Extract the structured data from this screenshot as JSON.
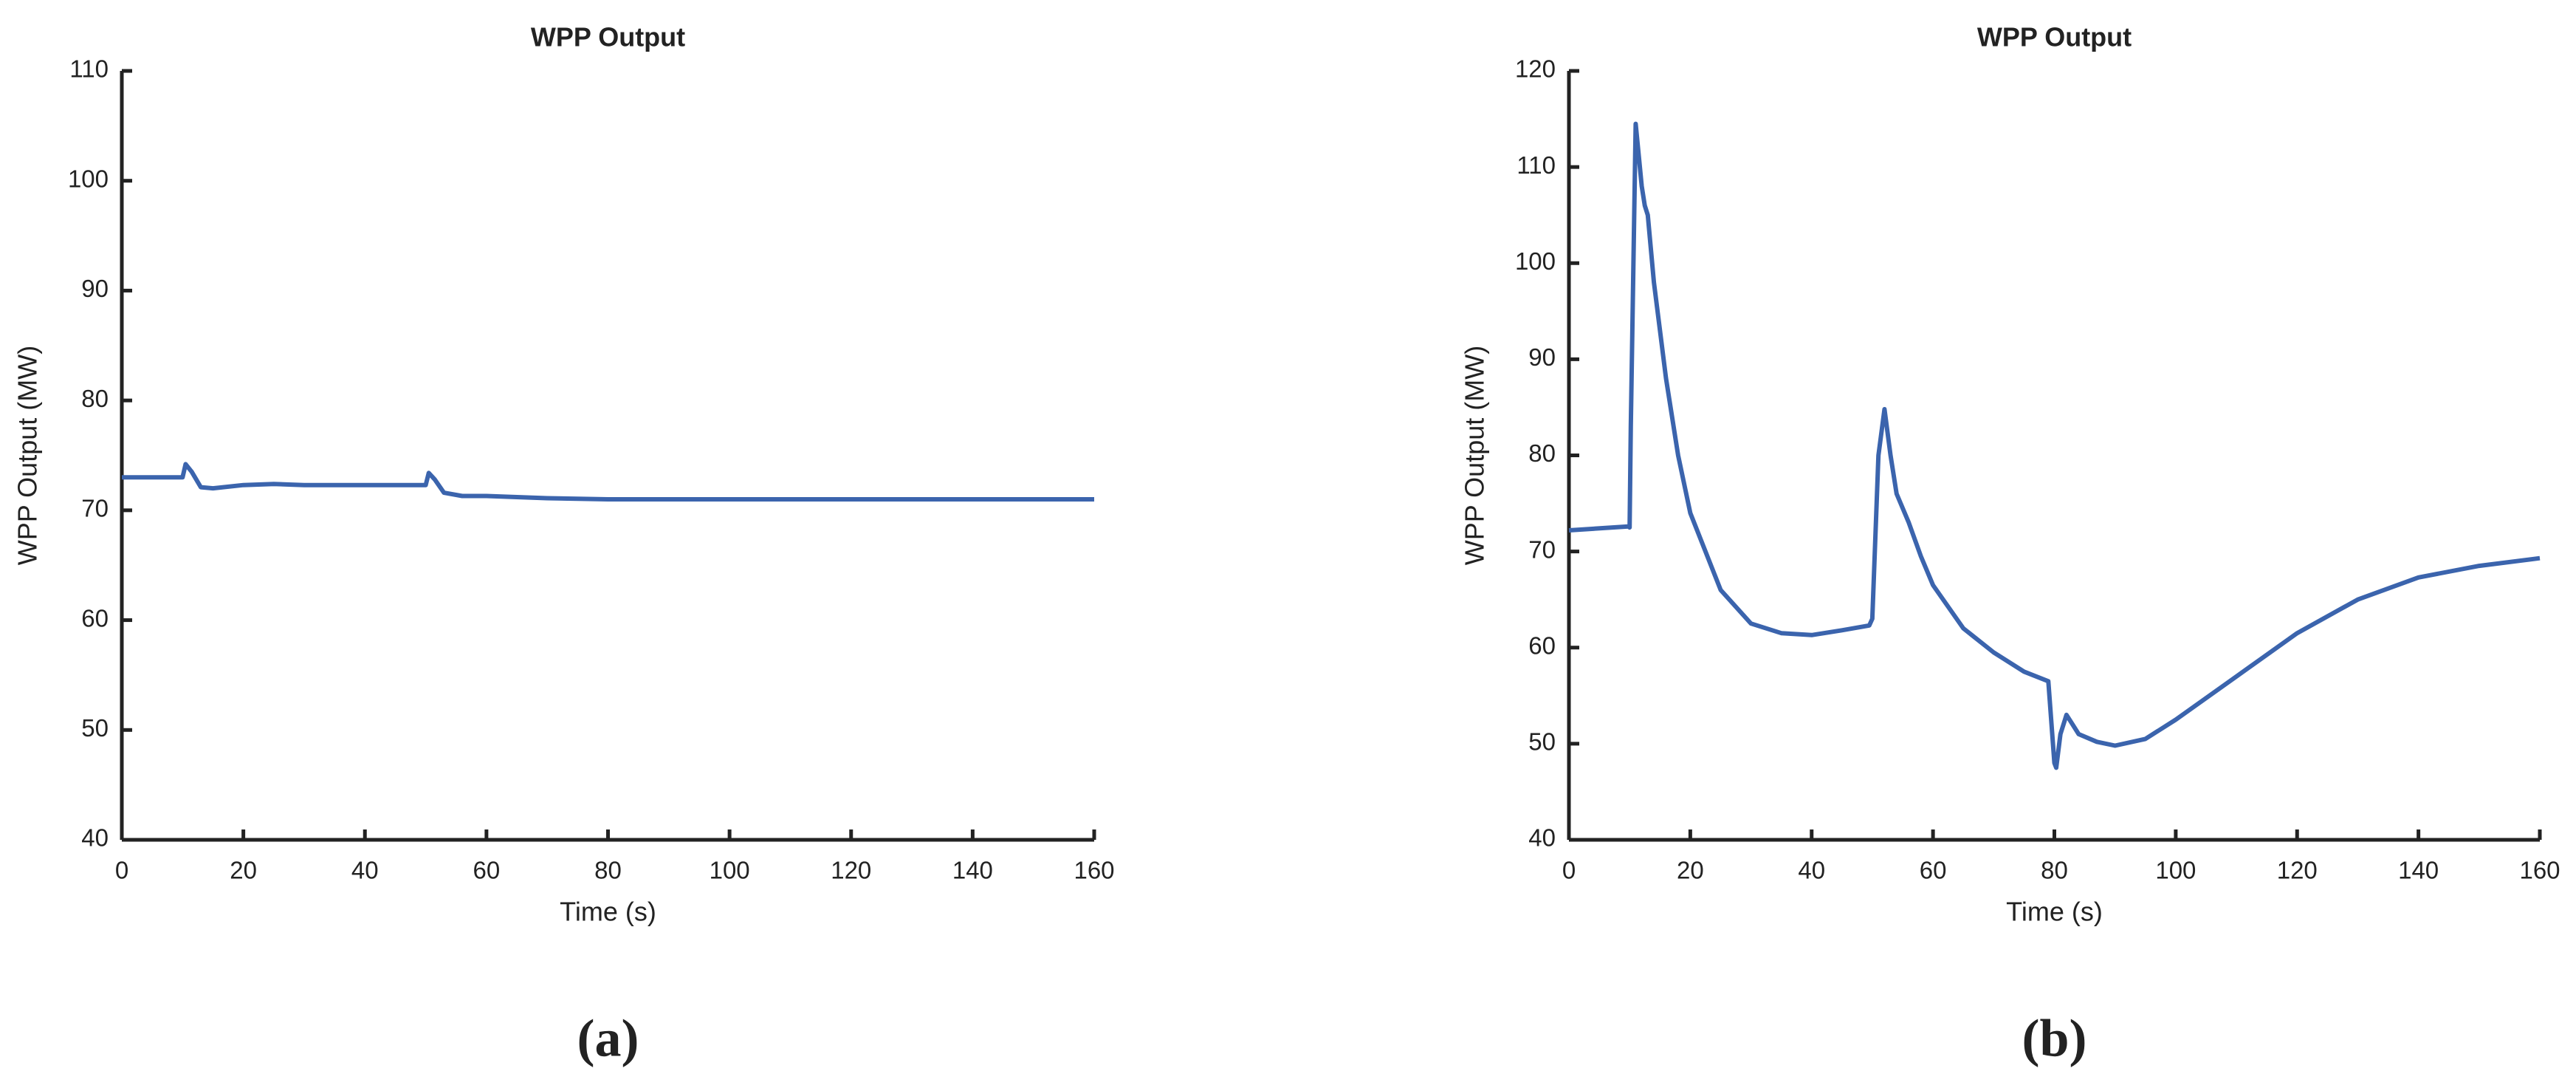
{
  "chart_data": [
    {
      "type": "line",
      "title": "WPP Output",
      "xlabel": "Time (s)",
      "ylabel": "WPP Output (MW)",
      "caption": "(a)",
      "xlim": [
        0,
        160
      ],
      "xticks": [
        0,
        20,
        40,
        60,
        80,
        100,
        120,
        140,
        160
      ],
      "ylim": [
        40,
        110
      ],
      "yticks": [
        40,
        50,
        60,
        70,
        80,
        90,
        100,
        110
      ],
      "series": [
        {
          "color": "#3b64ad",
          "x": [
            0,
            10,
            10.5,
            11.5,
            13,
            15,
            20,
            25,
            30,
            50,
            50.5,
            51.5,
            53,
            56,
            60,
            65,
            70,
            80,
            100,
            160
          ],
          "values": [
            73,
            73,
            74.2,
            73.5,
            72.1,
            72,
            72.3,
            72.4,
            72.3,
            72.3,
            73.4,
            72.8,
            71.6,
            71.3,
            71.3,
            71.2,
            71.1,
            71,
            71,
            71
          ]
        }
      ]
    },
    {
      "type": "line",
      "title": "WPP Output",
      "xlabel": "Time (s)",
      "ylabel": "WPP Output (MW)",
      "caption": "(b)",
      "xlim": [
        0,
        160
      ],
      "xticks": [
        0,
        20,
        40,
        60,
        80,
        100,
        120,
        140,
        160
      ],
      "ylim": [
        40,
        120
      ],
      "yticks": [
        40,
        50,
        60,
        70,
        80,
        90,
        100,
        110,
        120
      ],
      "series": [
        {
          "color": "#3b64ad",
          "x": [
            0,
            9.8,
            10,
            10.2,
            11,
            12,
            12.5,
            13,
            14,
            16,
            18,
            20,
            25,
            30,
            35,
            40,
            45,
            49.5,
            50,
            51,
            52,
            53,
            54,
            56,
            58,
            60,
            65,
            70,
            75,
            79,
            80,
            80.3,
            81,
            82,
            83,
            84,
            87,
            90,
            95,
            100,
            110,
            120,
            130,
            140,
            150,
            160
          ],
          "values": [
            72.2,
            72.6,
            72.5,
            83,
            114.5,
            108,
            106,
            105,
            98,
            88,
            80,
            74,
            66,
            62.5,
            61.5,
            61.3,
            61.8,
            62.3,
            63,
            80,
            84.8,
            80,
            76,
            73,
            69.5,
            66.5,
            62,
            59.5,
            57.5,
            56.5,
            48,
            47.5,
            51,
            53,
            52,
            51,
            50.2,
            49.8,
            50.5,
            52.5,
            57,
            61.5,
            65,
            67.3,
            68.5,
            69.3
          ]
        }
      ]
    }
  ]
}
